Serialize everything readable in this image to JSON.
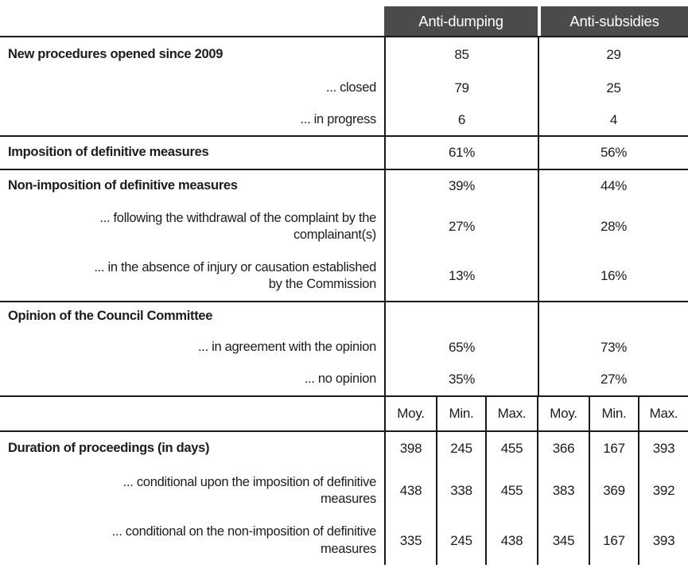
{
  "table": {
    "column_groups": [
      "Anti-dumping",
      "Anti-subsidies"
    ],
    "sub_headers": [
      "Moy.",
      "Min.",
      "Max.",
      "Moy.",
      "Min.",
      "Max."
    ],
    "rows": [
      {
        "label": "New procedures opened since 2009",
        "style": "main",
        "values": [
          "85",
          "29"
        ]
      },
      {
        "label": "... closed",
        "style": "sub",
        "values": [
          "79",
          "25"
        ]
      },
      {
        "label": "... in progress",
        "style": "sub",
        "values": [
          "6",
          "4"
        ]
      },
      {
        "label": "Imposition of definitive measures",
        "style": "main",
        "values": [
          "61%",
          "56%"
        ]
      },
      {
        "label": "Non-imposition of definitive measures",
        "style": "main",
        "values": [
          "39%",
          "44%"
        ]
      },
      {
        "label": "... following the withdrawal of the complaint by the\ncomplainant(s)",
        "style": "sub",
        "values": [
          "27%",
          "28%"
        ]
      },
      {
        "label": "... in the absence of injury or causation established\nby the Commission",
        "style": "sub",
        "values": [
          "13%",
          "16%"
        ]
      },
      {
        "label": "Opinion of the Council Committee",
        "style": "main",
        "values": [
          "",
          ""
        ]
      },
      {
        "label": "... in agreement with the opinion",
        "style": "sub",
        "values": [
          "65%",
          "73%"
        ]
      },
      {
        "label": "... no opinion",
        "style": "sub",
        "values": [
          "35%",
          "27%"
        ]
      },
      {
        "label": "Duration of proceedings (in days)",
        "style": "main",
        "values": [
          "398",
          "245",
          "455",
          "366",
          "167",
          "393"
        ]
      },
      {
        "label": "... conditional upon the imposition of definitive\nmeasures",
        "style": "sub",
        "values": [
          "438",
          "338",
          "455",
          "383",
          "369",
          "392"
        ]
      },
      {
        "label": "... conditional on the non-imposition of definitive\nmeasures",
        "style": "sub",
        "values": [
          "335",
          "245",
          "438",
          "345",
          "167",
          "393"
        ]
      }
    ],
    "colors": {
      "header_bg": "#4b4b4b",
      "header_text": "#ffffff",
      "body_text": "#1c1c1c",
      "rule": "#1a1a1a"
    }
  }
}
